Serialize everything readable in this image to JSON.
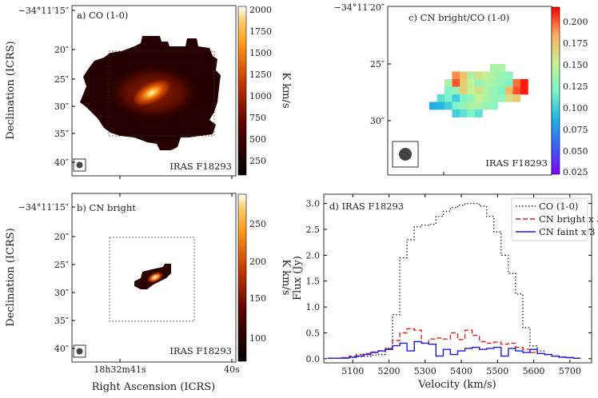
{
  "chart_data": [
    {
      "id": "a",
      "type": "heatmap",
      "panel_label": "a) CO (1-0)",
      "source_label": "IRAS F18293",
      "ylabel": "Declination (ICRS)",
      "y_ticks": [
        "−34°11′15″",
        "20″",
        "25″",
        "30″",
        "35″",
        "40″"
      ],
      "colorbar": {
        "label": "K km/s",
        "range": [
          50,
          2000
        ],
        "ticks": [
          "2000",
          "1750",
          "1500",
          "1250",
          "1000",
          "750",
          "500",
          "250"
        ],
        "colormap": "gist_heat"
      }
    },
    {
      "id": "b",
      "type": "heatmap",
      "panel_label": "b) CN bright",
      "source_label": "IRAS F18293",
      "xlabel": "Right Ascension (ICRS)",
      "ylabel": "Declination (ICRS)",
      "x_ticks": [
        "18h32m41s",
        "40s"
      ],
      "y_ticks": [
        "−34°11′15″",
        "20″",
        "25″",
        "30″",
        "35″",
        "40″"
      ],
      "colorbar": {
        "label": "K km/s",
        "range": [
          60,
          290
        ],
        "ticks": [
          "250",
          "200",
          "150",
          "100"
        ],
        "colormap": "gist_heat"
      }
    },
    {
      "id": "c",
      "type": "heatmap",
      "panel_label": "c) CN bright/CO (1-0)",
      "source_label": "IRAS F18293",
      "y_ticks": [
        "−34°11′20″",
        "25″",
        "30″"
      ],
      "colorbar": {
        "range": [
          0.025,
          0.215
        ],
        "ticks": [
          "0.200",
          "0.175",
          "0.150",
          "0.125",
          "0.100",
          "0.075",
          "0.050",
          "0.025"
        ],
        "colormap": "rainbow"
      },
      "ratio_grid_start": [
        2,
        8
      ],
      "ratio_grid": [
        [
          null,
          null,
          null,
          null,
          null,
          null,
          null,
          null,
          0.14,
          0.14,
          null,
          null,
          null
        ],
        [
          null,
          null,
          null,
          0.19,
          0.175,
          0.14,
          0.16,
          0.15,
          0.14,
          0.13,
          0.13,
          null,
          null
        ],
        [
          null,
          null,
          0.14,
          0.2,
          0.17,
          0.15,
          0.13,
          0.14,
          0.135,
          0.13,
          0.12,
          0.195,
          0.21
        ],
        [
          null,
          null,
          0.12,
          0.13,
          0.17,
          0.15,
          0.16,
          0.14,
          0.13,
          0.12,
          0.18,
          0.2,
          0.21
        ],
        [
          null,
          0.11,
          0.12,
          0.1,
          0.12,
          0.13,
          0.15,
          0.14,
          0.13,
          0.13,
          0.16,
          0.17,
          null
        ],
        [
          0.085,
          0.09,
          0.1,
          0.12,
          0.13,
          0.14,
          0.14,
          0.13,
          0.125,
          null,
          null,
          null,
          null
        ],
        [
          null,
          null,
          null,
          0.1,
          0.11,
          0.12,
          0.11,
          null,
          null,
          null,
          null,
          null,
          null
        ]
      ]
    },
    {
      "id": "d",
      "type": "line",
      "panel_label": "d) IRAS F18293",
      "xlabel": "Velocity (km/s)",
      "ylabel": "Flux (Jy)",
      "xlim": [
        5020,
        5760
      ],
      "ylim": [
        -0.08,
        3.18
      ],
      "x_ticks": [
        5100,
        5200,
        5300,
        5400,
        5500,
        5600,
        5700
      ],
      "y_ticks": [
        0.0,
        0.5,
        1.0,
        1.5,
        2.0,
        2.5,
        3.0
      ],
      "y_tick_labels": [
        "0.0",
        "0.5",
        "1.0",
        "1.5",
        "2.0",
        "2.5",
        "3.0"
      ],
      "x": [
        5040,
        5060,
        5080,
        5100,
        5120,
        5140,
        5160,
        5180,
        5200,
        5220,
        5240,
        5260,
        5280,
        5300,
        5320,
        5340,
        5360,
        5380,
        5400,
        5420,
        5440,
        5460,
        5480,
        5500,
        5520,
        5540,
        5560,
        5580,
        5600,
        5620,
        5640,
        5660,
        5680,
        5700,
        5720
      ],
      "series": [
        {
          "name": "CO (1-0)",
          "color": "#000000",
          "dash": "1.5,2.5",
          "values": [
            0.01,
            0.01,
            0.02,
            0.02,
            0.04,
            0.05,
            0.07,
            0.08,
            0.2,
            0.85,
            1.95,
            2.3,
            2.55,
            2.58,
            2.6,
            2.75,
            2.85,
            2.92,
            2.97,
            3.0,
            3.0,
            2.95,
            2.75,
            2.45,
            2.0,
            1.65,
            1.25,
            0.6,
            0.25,
            0.15,
            0.08,
            0.05,
            0.03,
            0.02,
            0.01
          ]
        },
        {
          "name": "CN bright x 3",
          "color": "#e32222",
          "dash": "6,3",
          "values": [
            0.01,
            0.01,
            0.02,
            0.05,
            0.08,
            0.1,
            0.13,
            0.15,
            0.2,
            0.35,
            0.5,
            0.58,
            0.55,
            0.3,
            0.38,
            0.4,
            0.38,
            0.5,
            0.37,
            0.55,
            0.45,
            0.33,
            0.3,
            0.32,
            0.28,
            0.3,
            0.22,
            0.18,
            0.12,
            0.1,
            0.08,
            0.05,
            0.03,
            0.02,
            0.01
          ]
        },
        {
          "name": "CN faint x 3",
          "color": "#1a1ae0",
          "dash": "",
          "values": [
            0.01,
            0.01,
            0.01,
            0.03,
            0.05,
            0.08,
            0.12,
            0.15,
            0.18,
            0.25,
            0.3,
            0.15,
            0.33,
            0.3,
            0.28,
            0.05,
            0.18,
            0.08,
            0.15,
            0.2,
            0.22,
            0.18,
            0.2,
            0.22,
            0.05,
            0.2,
            0.15,
            0.12,
            0.18,
            0.1,
            0.08,
            0.05,
            0.03,
            0.02,
            0.01
          ]
        }
      ]
    }
  ]
}
